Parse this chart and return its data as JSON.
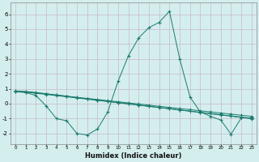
{
  "x": [
    0,
    1,
    2,
    3,
    4,
    5,
    6,
    7,
    8,
    9,
    10,
    11,
    12,
    13,
    14,
    15,
    16,
    17,
    18,
    19,
    20,
    21,
    22,
    23
  ],
  "line_spike": [
    0.8,
    0.75,
    0.55,
    -0.15,
    -1.0,
    -1.15,
    -2.0,
    -2.1,
    -1.7,
    -0.55,
    1.5,
    3.2,
    4.4,
    5.1,
    5.45,
    6.2,
    3.0,
    0.45,
    -0.55,
    -0.85,
    -1.1,
    -2.05,
    -0.95,
    -0.95
  ],
  "line_flat1": [
    0.8,
    0.78,
    0.72,
    0.65,
    0.58,
    0.5,
    0.42,
    0.35,
    0.28,
    0.2,
    0.13,
    0.05,
    -0.02,
    -0.1,
    -0.18,
    -0.25,
    -0.33,
    -0.4,
    -0.48,
    -0.55,
    -0.63,
    -0.7,
    -0.78,
    -0.85
  ],
  "line_flat2": [
    0.8,
    0.77,
    0.7,
    0.62,
    0.54,
    0.46,
    0.38,
    0.3,
    0.22,
    0.14,
    0.06,
    -0.02,
    -0.1,
    -0.18,
    -0.26,
    -0.34,
    -0.42,
    -0.5,
    -0.58,
    -0.66,
    -0.74,
    -0.82,
    -0.9,
    -0.98
  ],
  "line_flat3": [
    0.85,
    0.82,
    0.75,
    0.67,
    0.58,
    0.5,
    0.41,
    0.33,
    0.24,
    0.16,
    0.07,
    -0.01,
    -0.09,
    -0.18,
    -0.26,
    -0.34,
    -0.43,
    -0.51,
    -0.59,
    -0.68,
    -0.76,
    -0.84,
    -0.93,
    -1.01
  ],
  "color": "#1a7a6e",
  "bg_color": "#d4eeee",
  "grid_color": "#c8b8c8",
  "xlabel": "Humidex (Indice chaleur)",
  "ylim": [
    -2.7,
    6.8
  ],
  "xlim": [
    -0.5,
    23.5
  ],
  "yticks": [
    -2,
    -1,
    0,
    1,
    2,
    3,
    4,
    5,
    6
  ],
  "xticks": [
    0,
    1,
    2,
    3,
    4,
    5,
    6,
    7,
    8,
    9,
    10,
    11,
    12,
    13,
    14,
    15,
    16,
    17,
    18,
    19,
    20,
    21,
    22,
    23
  ]
}
